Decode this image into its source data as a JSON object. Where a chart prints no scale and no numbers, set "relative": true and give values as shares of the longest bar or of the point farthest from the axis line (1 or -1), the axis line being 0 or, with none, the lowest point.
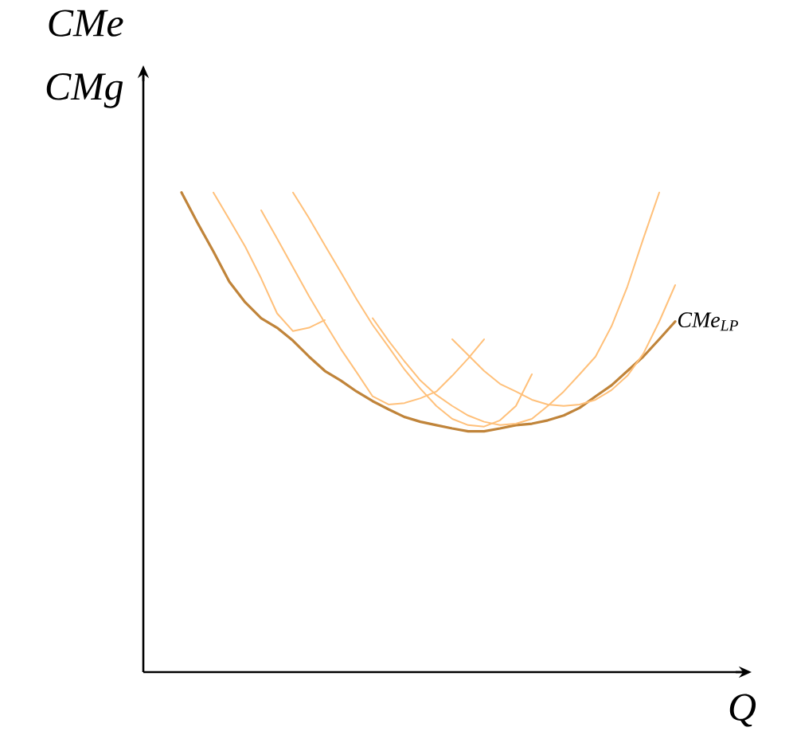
{
  "chart_data": {
    "type": "line",
    "relative": true,
    "xlabel": "Q",
    "ylabel": "CMe CMg",
    "categories": [
      null,
      null,
      null,
      null,
      null,
      null,
      null,
      null,
      null,
      null,
      null,
      null,
      null,
      null,
      null,
      null,
      null,
      null,
      null,
      null,
      null,
      null,
      null,
      null,
      null,
      null,
      null,
      null,
      null,
      null,
      null,
      null
    ],
    "series": [
      {
        "name": "CMe$_{LP}$",
        "color": "#c0843a",
        "values": [
          1.0,
          0.937,
          0.877,
          0.814,
          0.771,
          0.738,
          0.718,
          0.691,
          0.658,
          0.628,
          0.608,
          0.585,
          0.565,
          0.548,
          0.532,
          0.522,
          0.515,
          0.508,
          0.502,
          0.502,
          0.508,
          0.515,
          0.518,
          0.525,
          0.535,
          0.551,
          0.575,
          0.598,
          0.628,
          0.658,
          0.694,
          0.731
        ]
      },
      {
        "color": "#ffc07a",
        "values": [
          null,
          null,
          1.0,
          0.944,
          0.887,
          0.821,
          0.748,
          0.711,
          0.718,
          0.734,
          null,
          null,
          null,
          null,
          null,
          null,
          null,
          null,
          null,
          null,
          null,
          null,
          null,
          null,
          null,
          null,
          null,
          null,
          null,
          null,
          null,
          null
        ]
      },
      {
        "color": "#ffc07a",
        "values": [
          null,
          null,
          null,
          null,
          null,
          0.963,
          0.904,
          0.844,
          0.784,
          0.728,
          0.674,
          0.625,
          0.575,
          0.558,
          0.561,
          0.571,
          0.585,
          0.618,
          0.654,
          0.694,
          null,
          null,
          null,
          null,
          null,
          null,
          null,
          null,
          null,
          null,
          null,
          null
        ]
      },
      {
        "color": "#ffc07a",
        "values": [
          null,
          null,
          null,
          null,
          null,
          null,
          null,
          1.0,
          0.947,
          0.89,
          0.834,
          0.777,
          0.724,
          0.678,
          0.631,
          0.591,
          0.555,
          0.528,
          0.515,
          0.512,
          0.525,
          0.555,
          0.621,
          null,
          null,
          null,
          null,
          null,
          null,
          null,
          null,
          null
        ]
      },
      {
        "color": "#ffc07a",
        "values": [
          null,
          null,
          null,
          null,
          null,
          null,
          null,
          null,
          null,
          null,
          null,
          null,
          0.738,
          0.691,
          0.648,
          0.608,
          0.578,
          0.555,
          0.535,
          0.522,
          0.515,
          0.518,
          0.528,
          0.555,
          0.585,
          0.621,
          0.658,
          0.721,
          0.804,
          0.904,
          1.0,
          null
        ]
      },
      {
        "color": "#ffc07a",
        "values": [
          null,
          null,
          null,
          null,
          null,
          null,
          null,
          null,
          null,
          null,
          null,
          null,
          null,
          null,
          null,
          null,
          null,
          0.694,
          0.661,
          0.628,
          0.601,
          0.585,
          0.568,
          0.558,
          0.555,
          0.558,
          0.568,
          0.588,
          0.618,
          0.664,
          0.731,
          0.807
        ]
      }
    ]
  }
}
